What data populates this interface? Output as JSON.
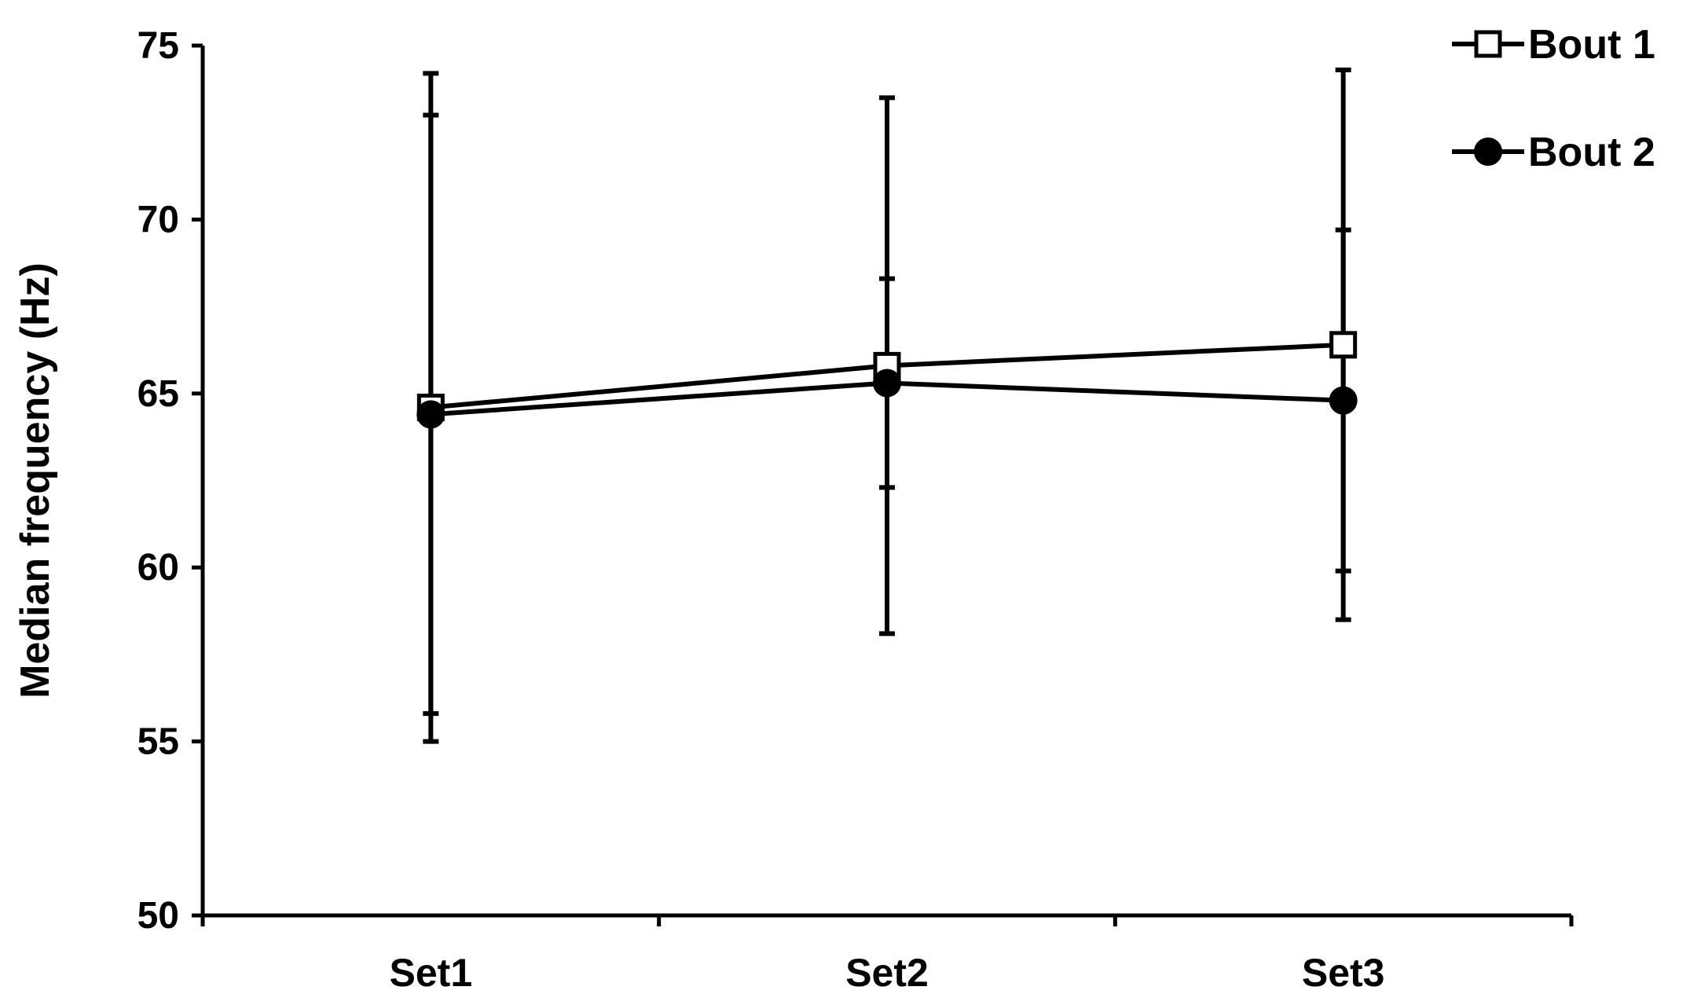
{
  "chart_data": {
    "type": "line",
    "title": "",
    "xlabel": "",
    "ylabel": "Median frequency (Hz)",
    "categories": [
      "Set1",
      "Set2",
      "Set3"
    ],
    "ylim": [
      50,
      75
    ],
    "yticks": [
      50,
      55,
      60,
      65,
      70,
      75
    ],
    "grid": false,
    "legend_position": "top-right",
    "series": [
      {
        "name": "Bout 1",
        "marker": "open-square",
        "values": [
          64.6,
          65.8,
          66.4
        ],
        "error_high": [
          74.2,
          73.5,
          74.3
        ],
        "error_low": [
          55.0,
          58.1,
          58.5
        ]
      },
      {
        "name": "Bout 2",
        "marker": "filled-circle",
        "values": [
          64.4,
          65.3,
          64.8
        ],
        "error_high": [
          73.0,
          68.3,
          69.7
        ],
        "error_low": [
          55.8,
          62.3,
          59.9
        ]
      }
    ],
    "colors": {
      "line": "#000000",
      "marker_fill_open": "#ffffff",
      "marker_fill_closed": "#000000"
    }
  }
}
